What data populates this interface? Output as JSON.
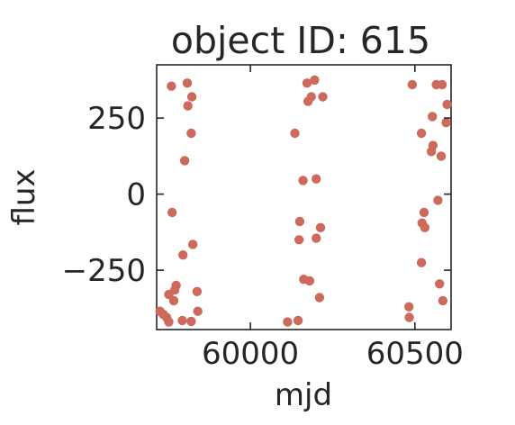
{
  "chart_data": {
    "type": "scatter",
    "title": "object ID: 615",
    "xlabel": "mjd",
    "ylabel": "flux",
    "xlim": [
      59715,
      60610
    ],
    "ylim": [
      -445,
      425
    ],
    "xticks": [
      60000,
      60500
    ],
    "xtick_labels": [
      "60000",
      "60500"
    ],
    "yticks": [
      -250,
      0,
      250
    ],
    "yticks_labels": [
      "−250",
      "0",
      "250"
    ],
    "grid": false,
    "marker_color": "#cd6a5b",
    "points": [
      {
        "x": 59725,
        "y": -385
      },
      {
        "x": 59735,
        "y": -395
      },
      {
        "x": 59745,
        "y": -405
      },
      {
        "x": 59752,
        "y": -420
      },
      {
        "x": 59752,
        "y": -330
      },
      {
        "x": 59760,
        "y": 355
      },
      {
        "x": 59762,
        "y": -60
      },
      {
        "x": 59767,
        "y": -350
      },
      {
        "x": 59770,
        "y": -315
      },
      {
        "x": 59774,
        "y": -300
      },
      {
        "x": 59793,
        "y": -415
      },
      {
        "x": 59795,
        "y": -200
      },
      {
        "x": 59800,
        "y": 110
      },
      {
        "x": 59808,
        "y": 365
      },
      {
        "x": 59810,
        "y": 290
      },
      {
        "x": 59822,
        "y": 320
      },
      {
        "x": 59820,
        "y": 200
      },
      {
        "x": 59825,
        "y": -165
      },
      {
        "x": 59820,
        "y": -418
      },
      {
        "x": 59838,
        "y": -320
      },
      {
        "x": 59840,
        "y": -385
      },
      {
        "x": 60113,
        "y": -420
      },
      {
        "x": 60135,
        "y": 200
      },
      {
        "x": 60145,
        "y": -415
      },
      {
        "x": 60148,
        "y": -150
      },
      {
        "x": 60150,
        "y": -90
      },
      {
        "x": 60160,
        "y": 45
      },
      {
        "x": 60162,
        "y": -280
      },
      {
        "x": 60172,
        "y": 365
      },
      {
        "x": 60175,
        "y": 305
      },
      {
        "x": 60180,
        "y": -285
      },
      {
        "x": 60185,
        "y": 320
      },
      {
        "x": 60195,
        "y": 375
      },
      {
        "x": 60200,
        "y": 50
      },
      {
        "x": 60200,
        "y": -145
      },
      {
        "x": 60210,
        "y": -340
      },
      {
        "x": 60213,
        "y": -110
      },
      {
        "x": 60220,
        "y": 320
      },
      {
        "x": 60482,
        "y": -370
      },
      {
        "x": 60483,
        "y": -405
      },
      {
        "x": 60492,
        "y": 360
      },
      {
        "x": 60520,
        "y": -225
      },
      {
        "x": 60520,
        "y": 200
      },
      {
        "x": 60522,
        "y": -95
      },
      {
        "x": 60528,
        "y": -60
      },
      {
        "x": 60530,
        "y": -110
      },
      {
        "x": 60550,
        "y": 140
      },
      {
        "x": 60553,
        "y": 255
      },
      {
        "x": 60555,
        "y": 160
      },
      {
        "x": 60565,
        "y": 360
      },
      {
        "x": 60570,
        "y": -20
      },
      {
        "x": 60575,
        "y": -295
      },
      {
        "x": 60580,
        "y": 125
      },
      {
        "x": 60583,
        "y": 360
      },
      {
        "x": 60585,
        "y": -350
      },
      {
        "x": 60595,
        "y": 235
      },
      {
        "x": 60598,
        "y": 295
      }
    ]
  }
}
